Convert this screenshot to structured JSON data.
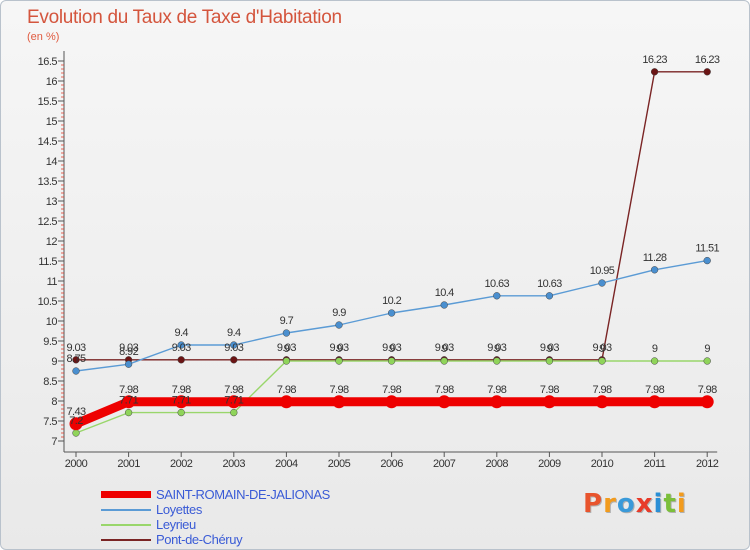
{
  "chart_data": {
    "type": "line",
    "title": "Evolution du Taux de Taxe d'Habitation",
    "unit_label": "(en %)",
    "categories": [
      "2000",
      "2001",
      "2002",
      "2003",
      "2004",
      "2005",
      "2006",
      "2007",
      "2008",
      "2009",
      "2010",
      "2011",
      "2012"
    ],
    "ylim": [
      7,
      16.5
    ],
    "yticks": [
      "7",
      "7.5",
      "8",
      "8.5",
      "9",
      "9.5",
      "10",
      "10.5",
      "11",
      "11.5",
      "12",
      "12.5",
      "13",
      "13.5",
      "14",
      "14.5",
      "15",
      "15.5",
      "16",
      "16.5"
    ],
    "grid": false,
    "legend_position": "bottom-left",
    "series": [
      {
        "name": "SAINT-ROMAIN-DE-JALIONAS",
        "color": "#ee0000",
        "values": [
          7.43,
          7.98,
          7.98,
          7.98,
          7.98,
          7.98,
          7.98,
          7.98,
          7.98,
          7.98,
          7.98,
          7.98,
          7.98
        ],
        "labels": [
          "7.43",
          "7.98",
          "7.98",
          "7.98",
          "7.98",
          "7.98",
          "7.98",
          "7.98",
          "7.98",
          "7.98",
          "7.98",
          "7.98",
          "7.98"
        ]
      },
      {
        "name": "Loyettes",
        "color": "#5b9bd5",
        "values": [
          8.75,
          8.92,
          9.4,
          9.4,
          9.7,
          9.9,
          10.2,
          10.4,
          10.63,
          10.63,
          10.95,
          11.28,
          11.51
        ],
        "labels": [
          "8.75",
          "8.92",
          "9.4",
          "9.4",
          "9.7",
          "9.9",
          "10.2",
          "10.4",
          "10.63",
          "10.63",
          "10.95",
          "11.28",
          "11.51"
        ]
      },
      {
        "name": "Leyrieu",
        "color": "#99d66b",
        "values": [
          7.2,
          7.71,
          7.71,
          7.71,
          9.0,
          9.0,
          9.0,
          9.0,
          9.0,
          9.0,
          9.0,
          9.0,
          9.0
        ],
        "labels": [
          "7.2",
          "7.71",
          "7.71",
          "7.71",
          "9",
          "9",
          "9",
          "9",
          "9",
          "9",
          "9",
          "9",
          "9"
        ]
      },
      {
        "name": "Pont-de-Chéruy",
        "color": "#7a2424",
        "values": [
          9.03,
          9.03,
          9.03,
          9.03,
          9.03,
          9.03,
          9.03,
          9.03,
          9.03,
          9.03,
          9.03,
          16.23,
          16.23
        ],
        "labels": [
          "9.03",
          "9.03",
          "9.03",
          "9.03",
          "9.03",
          "9.03",
          "9.03",
          "9.03",
          "9.03",
          "9.03",
          "9.03",
          "16.23",
          "16.23"
        ]
      }
    ]
  },
  "brand": "Proxiti"
}
